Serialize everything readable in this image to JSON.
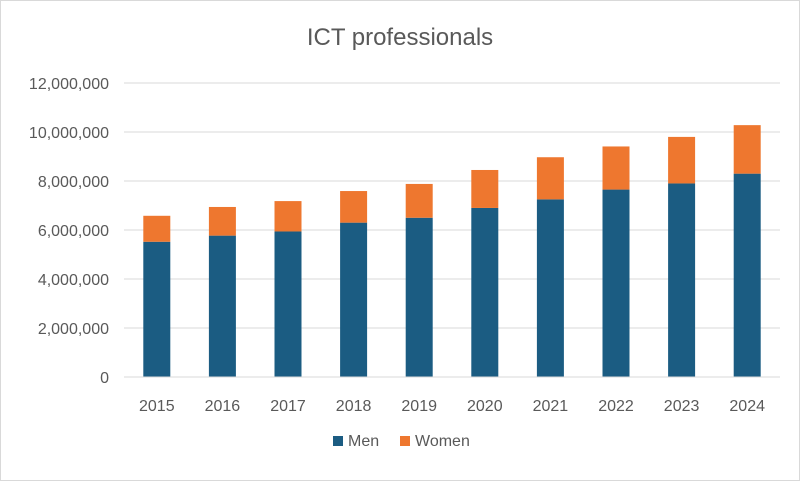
{
  "chart_data": {
    "type": "bar",
    "stacked": true,
    "title": "ICT professionals",
    "xlabel": "",
    "ylabel": "",
    "categories": [
      "2015",
      "2016",
      "2017",
      "2018",
      "2019",
      "2020",
      "2021",
      "2022",
      "2023",
      "2024"
    ],
    "series": [
      {
        "name": "Men",
        "color": "#1b5c82",
        "values": [
          5520000,
          5770000,
          5940000,
          6300000,
          6500000,
          6900000,
          7250000,
          7650000,
          7900000,
          8300000
        ]
      },
      {
        "name": "Women",
        "color": "#ee772f",
        "values": [
          1060000,
          1170000,
          1240000,
          1290000,
          1380000,
          1550000,
          1720000,
          1760000,
          1900000,
          1980000
        ]
      }
    ],
    "ylim": [
      0,
      12000000
    ],
    "yticks": [
      0,
      2000000,
      4000000,
      6000000,
      8000000,
      10000000,
      12000000
    ],
    "ytick_labels": [
      "0",
      "2,000,000",
      "4,000,000",
      "6,000,000",
      "8,000,000",
      "10,000,000",
      "12,000,000"
    ],
    "grid": true,
    "gridline_color": "#d9d9d9",
    "legend": "bottom"
  }
}
